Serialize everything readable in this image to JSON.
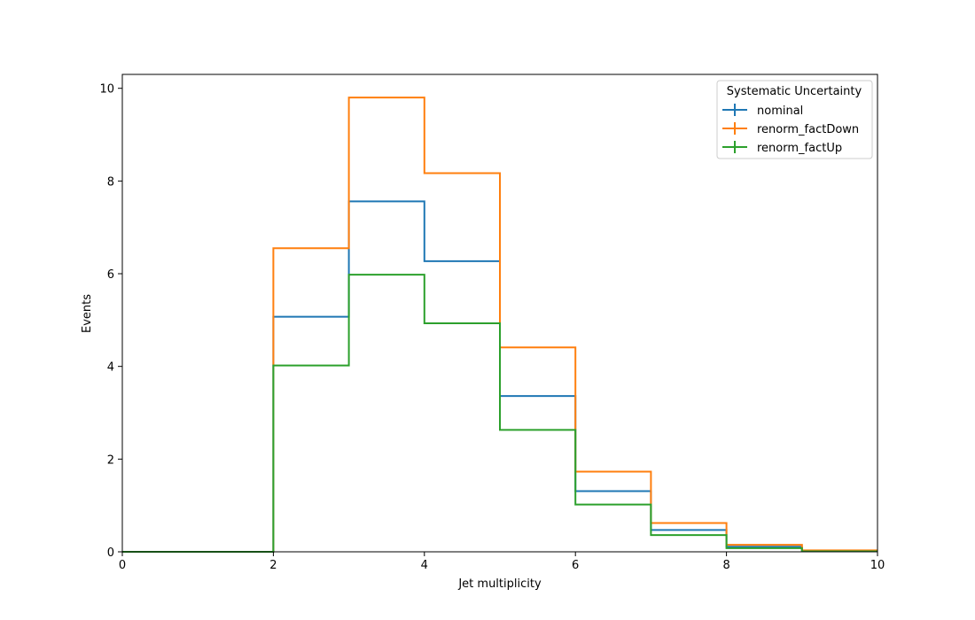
{
  "chart_data": {
    "type": "histogram-step",
    "xlabel": "Jet multiplicity",
    "ylabel": "Events",
    "xlim": [
      0,
      10
    ],
    "ylim": [
      0,
      10.3
    ],
    "xticks": [
      "0",
      "2",
      "4",
      "6",
      "8",
      "10"
    ],
    "yticks": [
      "0",
      "2",
      "4",
      "6",
      "8",
      "10"
    ],
    "bin_edges": [
      0,
      1,
      2,
      3,
      4,
      5,
      6,
      7,
      8,
      9,
      10
    ],
    "legend": {
      "title": "Systematic Uncertainty",
      "placement": "top-right"
    },
    "series": [
      {
        "name": "nominal",
        "color": "#1f77b4",
        "values": [
          0,
          0,
          5.07,
          7.56,
          6.27,
          3.36,
          1.31,
          0.47,
          0.11,
          0.02
        ]
      },
      {
        "name": "renorm_factDown",
        "color": "#ff7f0e",
        "values": [
          0,
          0,
          6.55,
          9.8,
          8.17,
          4.41,
          1.73,
          0.62,
          0.15,
          0.03
        ]
      },
      {
        "name": "renorm_factUp",
        "color": "#2ca02c",
        "values": [
          0,
          0,
          4.02,
          5.98,
          4.93,
          2.63,
          1.02,
          0.36,
          0.08,
          0.01
        ]
      }
    ],
    "grid": false
  }
}
